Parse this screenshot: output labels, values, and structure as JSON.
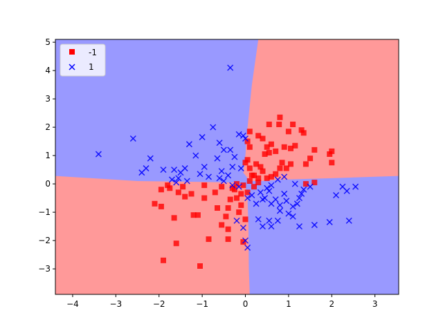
{
  "chart_data": {
    "type": "scatter",
    "title": "",
    "xlabel": "",
    "ylabel": "",
    "xlim": [
      -4.4,
      3.55
    ],
    "ylim": [
      -3.9,
      5.1
    ],
    "x_ticks": [
      -4,
      -3,
      -2,
      -1,
      0,
      1,
      2,
      3
    ],
    "y_ticks": [
      -3,
      -2,
      -1,
      0,
      1,
      2,
      3,
      4,
      5
    ],
    "x_tick_labels": [
      "−4",
      "−3",
      "−2",
      "−1",
      "0",
      "1",
      "2",
      "3"
    ],
    "y_tick_labels": [
      "−3",
      "−2",
      "−1",
      "0",
      "1",
      "2",
      "3",
      "4",
      "5"
    ],
    "grid": false,
    "legend_position": "top-left",
    "decision_regions": {
      "description_free": true,
      "colors": {
        "-1": "#ff9999",
        "1": "#9999ff"
      }
    },
    "series": [
      {
        "name": "-1",
        "marker": "square",
        "color": "#ff0000",
        "points": [
          [
            0.1,
            1.85
          ],
          [
            0.3,
            1.7
          ],
          [
            0.55,
            2.1
          ],
          [
            0.8,
            2.35
          ],
          [
            0.78,
            2.1
          ],
          [
            1.1,
            2.1
          ],
          [
            1.3,
            1.9
          ],
          [
            1.35,
            1.8
          ],
          [
            1.0,
            1.85
          ],
          [
            0.4,
            1.6
          ],
          [
            0.5,
            1.3
          ],
          [
            0.6,
            1.4
          ],
          [
            0.9,
            1.3
          ],
          [
            1.05,
            1.25
          ],
          [
            1.15,
            1.35
          ],
          [
            0.7,
            1.15
          ],
          [
            0.55,
            1.1
          ],
          [
            0.45,
            1.05
          ],
          [
            0.1,
            1.3
          ],
          [
            0.05,
            1.5
          ],
          [
            1.6,
            1.2
          ],
          [
            1.5,
            0.9
          ],
          [
            1.4,
            0.7
          ],
          [
            1.95,
            1.05
          ],
          [
            2.0,
            1.15
          ],
          [
            2.0,
            0.75
          ],
          [
            0.25,
            0.7
          ],
          [
            0.35,
            0.6
          ],
          [
            0.05,
            0.85
          ],
          [
            0.0,
            0.75
          ],
          [
            0.1,
            0.55
          ],
          [
            0.85,
            0.75
          ],
          [
            0.8,
            0.55
          ],
          [
            0.95,
            0.55
          ],
          [
            1.05,
            0.7
          ],
          [
            0.4,
            0.45
          ],
          [
            0.2,
            0.3
          ],
          [
            0.3,
            0.2
          ],
          [
            0.5,
            0.2
          ],
          [
            0.6,
            0.25
          ],
          [
            0.7,
            0.35
          ],
          [
            0.1,
            0.1
          ],
          [
            0.15,
            0.3
          ],
          [
            0.2,
            -0.1
          ],
          [
            0.3,
            0.05
          ],
          [
            0.05,
            -0.3
          ],
          [
            -0.05,
            -0.05
          ],
          [
            -0.2,
            0.0
          ],
          [
            -0.3,
            -0.15
          ],
          [
            -0.1,
            -0.35
          ],
          [
            -0.1,
            -0.75
          ],
          [
            -0.15,
            -1.0
          ],
          [
            -0.4,
            -0.85
          ],
          [
            -0.45,
            -1.15
          ],
          [
            -0.2,
            -0.5
          ],
          [
            -0.25,
            -0.2
          ],
          [
            0.0,
            -1.25
          ],
          [
            1.4,
            0.0
          ],
          [
            1.6,
            0.05
          ],
          [
            -0.55,
            -1.45
          ],
          [
            -0.4,
            -1.6
          ],
          [
            -0.85,
            -1.95
          ],
          [
            -0.4,
            -1.95
          ],
          [
            -0.05,
            -2.05
          ],
          [
            -1.6,
            -2.1
          ],
          [
            -1.9,
            -2.7
          ],
          [
            -1.05,
            -2.9
          ],
          [
            -1.2,
            -1.1
          ],
          [
            -1.1,
            -1.1
          ],
          [
            -1.65,
            -1.2
          ],
          [
            -2.1,
            -0.7
          ],
          [
            -1.95,
            -0.8
          ],
          [
            -1.95,
            -0.2
          ],
          [
            -1.75,
            -0.15
          ],
          [
            -1.8,
            -0.05
          ],
          [
            -1.55,
            -0.3
          ],
          [
            -1.4,
            -0.45
          ],
          [
            -1.45,
            -0.1
          ],
          [
            -1.25,
            -0.35
          ],
          [
            -0.95,
            -0.5
          ],
          [
            -0.65,
            -0.85
          ],
          [
            -0.55,
            -0.1
          ],
          [
            -0.7,
            -0.3
          ],
          [
            -0.95,
            -0.05
          ],
          [
            -0.35,
            -0.55
          ]
        ]
      },
      {
        "name": "1",
        "marker": "x",
        "color": "#0000ff",
        "points": [
          [
            -0.35,
            4.1
          ],
          [
            -0.75,
            2.0
          ],
          [
            -1.0,
            1.65
          ],
          [
            -1.3,
            1.4
          ],
          [
            -1.15,
            1.0
          ],
          [
            -0.6,
            1.45
          ],
          [
            -0.5,
            1.2
          ],
          [
            -0.65,
            0.9
          ],
          [
            -0.55,
            0.45
          ],
          [
            -0.85,
            0.25
          ],
          [
            -0.15,
            1.75
          ],
          [
            -0.05,
            1.7
          ],
          [
            0.0,
            1.6
          ],
          [
            -0.35,
            1.2
          ],
          [
            -0.25,
            0.95
          ],
          [
            -0.1,
            0.55
          ],
          [
            -0.3,
            0.6
          ],
          [
            -0.4,
            0.3
          ],
          [
            -0.5,
            0.1
          ],
          [
            -0.6,
            0.2
          ],
          [
            -0.3,
            -0.05
          ],
          [
            -1.05,
            0.35
          ],
          [
            -0.95,
            0.6
          ],
          [
            -1.4,
            0.55
          ],
          [
            -1.5,
            0.4
          ],
          [
            -1.55,
            0.2
          ],
          [
            -1.7,
            0.15
          ],
          [
            -1.65,
            0.5
          ],
          [
            -1.9,
            0.5
          ],
          [
            -2.2,
            0.9
          ],
          [
            -2.3,
            0.55
          ],
          [
            -2.4,
            0.4
          ],
          [
            -2.6,
            1.6
          ],
          [
            -3.4,
            1.05
          ],
          [
            -1.6,
            0.05
          ],
          [
            -1.35,
            0.1
          ],
          [
            -0.15,
            -0.1
          ],
          [
            0.05,
            -0.5
          ],
          [
            0.35,
            -0.3
          ],
          [
            0.45,
            -0.5
          ],
          [
            0.55,
            -0.25
          ],
          [
            0.6,
            -0.05
          ],
          [
            0.75,
            0.15
          ],
          [
            0.9,
            0.25
          ],
          [
            0.5,
            -0.15
          ],
          [
            0.4,
            -0.55
          ],
          [
            0.6,
            -0.7
          ],
          [
            0.7,
            -0.55
          ],
          [
            0.8,
            -0.95
          ],
          [
            0.95,
            -0.6
          ],
          [
            1.0,
            -1.05
          ],
          [
            1.1,
            -0.8
          ],
          [
            1.2,
            -0.7
          ],
          [
            1.25,
            -0.5
          ],
          [
            1.3,
            -0.35
          ],
          [
            1.5,
            -0.1
          ],
          [
            0.55,
            -1.3
          ],
          [
            0.6,
            -1.5
          ],
          [
            0.75,
            -1.3
          ],
          [
            0.4,
            -1.5
          ],
          [
            0.3,
            -1.25
          ],
          [
            0.25,
            -0.7
          ],
          [
            0.15,
            -0.4
          ],
          [
            1.1,
            -1.15
          ],
          [
            1.25,
            -1.5
          ],
          [
            1.6,
            -1.45
          ],
          [
            1.95,
            -1.35
          ],
          [
            2.4,
            -1.3
          ],
          [
            2.1,
            -0.4
          ],
          [
            2.25,
            -0.1
          ],
          [
            2.55,
            -0.1
          ],
          [
            2.35,
            -0.25
          ],
          [
            0.05,
            -2.25
          ],
          [
            0.0,
            -2.0
          ],
          [
            -0.05,
            -1.55
          ],
          [
            -0.2,
            -1.3
          ],
          [
            0.9,
            -0.35
          ],
          [
            0.8,
            -0.75
          ],
          [
            1.35,
            -0.2
          ],
          [
            1.15,
            0.0
          ]
        ]
      }
    ]
  }
}
